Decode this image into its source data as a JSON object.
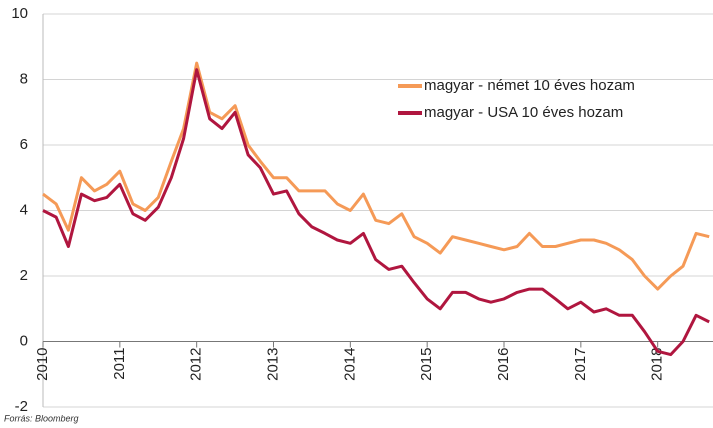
{
  "chart_data": {
    "type": "line",
    "source": "Forrás: Bloomberg",
    "x": [
      2010,
      2010.17,
      2010.33,
      2010.5,
      2010.67,
      2010.83,
      2011,
      2011.17,
      2011.33,
      2011.5,
      2011.67,
      2011.83,
      2012,
      2012.17,
      2012.33,
      2012.5,
      2012.67,
      2012.83,
      2013,
      2013.17,
      2013.33,
      2013.5,
      2013.67,
      2013.83,
      2014,
      2014.17,
      2014.33,
      2014.5,
      2014.67,
      2014.83,
      2015,
      2015.17,
      2015.33,
      2015.5,
      2015.67,
      2015.83,
      2016,
      2016.17,
      2016.33,
      2016.5,
      2016.67,
      2016.83,
      2017,
      2017.17,
      2017.33,
      2017.5,
      2017.67,
      2017.83,
      2018,
      2018.17,
      2018.33,
      2018.5,
      2018.67
    ],
    "series": [
      {
        "name": "magyar - német 10 éves hozam",
        "color": "#f59a57",
        "values": [
          4.5,
          4.2,
          3.4,
          5.0,
          4.6,
          4.8,
          5.2,
          4.2,
          4.0,
          4.4,
          5.5,
          6.5,
          8.5,
          7.0,
          6.8,
          7.2,
          6.0,
          5.5,
          5.0,
          5.0,
          4.6,
          4.6,
          4.6,
          4.2,
          4.0,
          4.5,
          3.7,
          3.6,
          3.9,
          3.2,
          3.0,
          2.7,
          3.2,
          3.1,
          3.0,
          2.9,
          2.8,
          2.9,
          3.3,
          2.9,
          2.9,
          3.0,
          3.1,
          3.1,
          3.0,
          2.8,
          2.5,
          2.0,
          1.6,
          2.0,
          2.3,
          3.3,
          3.2
        ]
      },
      {
        "name": "magyar - USA 10 éves hozam",
        "color": "#b0163f",
        "values": [
          4.0,
          3.8,
          2.9,
          4.5,
          4.3,
          4.4,
          4.8,
          3.9,
          3.7,
          4.1,
          5.0,
          6.2,
          8.3,
          6.8,
          6.5,
          7.0,
          5.7,
          5.3,
          4.5,
          4.6,
          3.9,
          3.5,
          3.3,
          3.1,
          3.0,
          3.3,
          2.5,
          2.2,
          2.3,
          1.8,
          1.3,
          1.0,
          1.5,
          1.5,
          1.3,
          1.2,
          1.3,
          1.5,
          1.6,
          1.6,
          1.3,
          1.0,
          1.2,
          0.9,
          1.0,
          0.8,
          0.8,
          0.3,
          -0.3,
          -0.4,
          0.0,
          0.8,
          0.6
        ]
      }
    ],
    "xlim": [
      2010,
      2018.72
    ],
    "ylim": [
      -2,
      10
    ],
    "xticks": [
      2010,
      2011,
      2012,
      2013,
      2014,
      2015,
      2016,
      2017,
      2018
    ],
    "yticks": [
      -2,
      0,
      2,
      4,
      6,
      8,
      10
    ],
    "grid": true,
    "legend": "upper right"
  }
}
